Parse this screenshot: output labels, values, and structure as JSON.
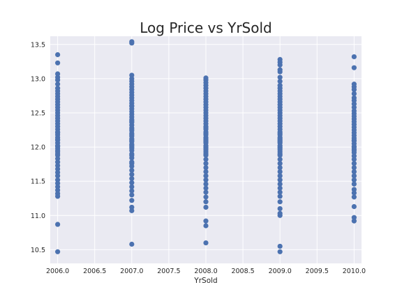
{
  "chart_data": {
    "type": "scatter",
    "title": "Log Price vs YrSold",
    "xlabel": "YrSold",
    "ylabel": "",
    "xlim": [
      2005.9,
      2010.1
    ],
    "ylim": [
      10.3,
      13.62
    ],
    "xticks": [
      2006.0,
      2006.5,
      2007.0,
      2007.5,
      2008.0,
      2008.5,
      2009.0,
      2009.5,
      2010.0
    ],
    "xtick_labels": [
      "2006.0",
      "2006.5",
      "2007.0",
      "2007.5",
      "2008.0",
      "2008.5",
      "2009.0",
      "2009.5",
      "2010.0"
    ],
    "yticks": [
      10.5,
      11.0,
      11.5,
      12.0,
      12.5,
      13.0,
      13.5
    ],
    "ytick_labels": [
      "10.5",
      "11.0",
      "11.5",
      "12.0",
      "12.5",
      "13.0",
      "13.5"
    ],
    "grid": true,
    "marker_color": "#4C72B0",
    "background_color": "#EAEAF2",
    "series": [
      {
        "x": [
          2006,
          2006,
          2006,
          2006,
          2006,
          2006,
          2006,
          2006,
          2006,
          2006,
          2006,
          2006,
          2006,
          2006,
          2006,
          2006,
          2006,
          2006,
          2006,
          2006,
          2006,
          2006,
          2006,
          2006,
          2006,
          2006,
          2006,
          2006,
          2006,
          2006,
          2006,
          2006,
          2006,
          2006,
          2006,
          2006,
          2006,
          2006,
          2006,
          2006,
          2006,
          2006,
          2006,
          2006,
          2006,
          2006,
          2006,
          2006,
          2006,
          2006,
          2007,
          2007,
          2007,
          2007,
          2007,
          2007,
          2007,
          2007,
          2007,
          2007,
          2007,
          2007,
          2007,
          2007,
          2007,
          2007,
          2007,
          2007,
          2007,
          2007,
          2007,
          2007,
          2007,
          2007,
          2007,
          2007,
          2007,
          2007,
          2007,
          2007,
          2007,
          2007,
          2007,
          2007,
          2007,
          2007,
          2007,
          2007,
          2007,
          2007,
          2007,
          2007,
          2007,
          2007,
          2007,
          2007,
          2007,
          2007,
          2007,
          2007,
          2007,
          2007,
          2007,
          2007,
          2008,
          2008,
          2008,
          2008,
          2008,
          2008,
          2008,
          2008,
          2008,
          2008,
          2008,
          2008,
          2008,
          2008,
          2008,
          2008,
          2008,
          2008,
          2008,
          2008,
          2008,
          2008,
          2008,
          2008,
          2008,
          2008,
          2008,
          2008,
          2008,
          2008,
          2008,
          2008,
          2008,
          2008,
          2008,
          2008,
          2008,
          2008,
          2008,
          2008,
          2008,
          2008,
          2008,
          2008,
          2008,
          2008,
          2008,
          2008,
          2008,
          2008,
          2008,
          2009,
          2009,
          2009,
          2009,
          2009,
          2009,
          2009,
          2009,
          2009,
          2009,
          2009,
          2009,
          2009,
          2009,
          2009,
          2009,
          2009,
          2009,
          2009,
          2009,
          2009,
          2009,
          2009,
          2009,
          2009,
          2009,
          2009,
          2009,
          2009,
          2009,
          2009,
          2009,
          2009,
          2009,
          2009,
          2009,
          2009,
          2009,
          2009,
          2009,
          2009,
          2009,
          2009,
          2009,
          2009,
          2009,
          2009,
          2009,
          2009,
          2009,
          2009,
          2009,
          2009,
          2009,
          2009,
          2010,
          2010,
          2010,
          2010,
          2010,
          2010,
          2010,
          2010,
          2010,
          2010,
          2010,
          2010,
          2010,
          2010,
          2010,
          2010,
          2010,
          2010,
          2010,
          2010,
          2010,
          2010,
          2010,
          2010,
          2010,
          2010,
          2010,
          2010,
          2010,
          2010,
          2010,
          2010,
          2010,
          2010,
          2010,
          2010,
          2010,
          2010,
          2010,
          2010,
          2010,
          2010,
          2010
        ],
        "y": [
          10.47,
          10.87,
          11.28,
          11.32,
          11.37,
          11.42,
          11.47,
          11.52,
          11.58,
          11.63,
          11.68,
          11.73,
          11.78,
          11.83,
          11.88,
          11.93,
          11.98,
          12.02,
          12.06,
          12.1,
          12.14,
          12.18,
          12.22,
          12.26,
          12.3,
          12.34,
          12.38,
          12.42,
          12.46,
          12.5,
          12.54,
          12.58,
          12.62,
          12.66,
          12.7,
          12.74,
          12.78,
          12.82,
          12.86,
          12.92,
          12.98,
          13.02,
          13.07,
          13.23,
          13.35,
          11.95,
          12.01,
          12.11,
          12.21,
          11.9,
          10.58,
          11.07,
          11.12,
          11.22,
          11.3,
          11.36,
          11.42,
          11.48,
          11.54,
          11.6,
          11.66,
          11.72,
          11.78,
          11.84,
          11.9,
          11.95,
          12.0,
          12.04,
          12.08,
          12.12,
          12.16,
          12.2,
          12.24,
          12.28,
          12.32,
          12.36,
          12.4,
          12.44,
          12.48,
          12.52,
          12.56,
          12.6,
          12.64,
          12.68,
          12.72,
          12.76,
          12.8,
          12.84,
          12.88,
          12.92,
          12.96,
          13.0,
          13.05,
          13.52,
          13.54,
          12.02,
          12.1,
          12.18,
          11.98,
          11.88,
          12.26,
          12.38,
          11.76,
          12.6,
          10.6,
          10.85,
          10.92,
          11.12,
          11.2,
          11.27,
          11.34,
          11.4,
          11.46,
          11.52,
          11.58,
          11.64,
          11.7,
          11.76,
          11.82,
          11.88,
          11.93,
          11.98,
          12.02,
          12.06,
          12.1,
          12.14,
          12.18,
          12.22,
          12.26,
          12.3,
          12.34,
          12.38,
          12.42,
          12.46,
          12.5,
          12.54,
          12.58,
          12.62,
          12.66,
          12.7,
          12.74,
          12.78,
          12.82,
          12.86,
          12.9,
          12.94,
          12.98,
          13.01,
          12.0,
          12.08,
          11.96,
          12.12,
          12.2,
          11.9,
          12.28,
          10.47,
          10.55,
          11.0,
          11.03,
          11.1,
          11.2,
          11.28,
          11.34,
          11.4,
          11.46,
          11.52,
          11.58,
          11.64,
          11.7,
          11.76,
          11.82,
          11.88,
          11.93,
          11.98,
          12.02,
          12.06,
          12.1,
          12.14,
          12.18,
          12.22,
          12.26,
          12.3,
          12.34,
          12.38,
          12.42,
          12.46,
          12.5,
          12.54,
          12.58,
          12.62,
          12.66,
          12.7,
          12.74,
          12.78,
          12.82,
          12.86,
          12.9,
          12.96,
          13.02,
          13.1,
          13.13,
          13.2,
          13.24,
          13.28,
          12.0,
          12.08,
          11.96,
          12.12,
          12.2,
          11.9,
          10.92,
          10.97,
          11.13,
          11.27,
          11.33,
          11.38,
          11.46,
          11.52,
          11.58,
          11.64,
          11.7,
          11.76,
          11.82,
          11.87,
          11.92,
          11.97,
          12.01,
          12.05,
          12.09,
          12.13,
          12.17,
          12.21,
          12.25,
          12.29,
          12.33,
          12.37,
          12.41,
          12.45,
          12.49,
          12.53,
          12.58,
          12.63,
          12.68,
          12.72,
          12.78,
          12.84,
          12.88,
          12.92,
          13.16,
          13.32,
          12.0,
          12.1,
          11.95
        ]
      }
    ]
  }
}
